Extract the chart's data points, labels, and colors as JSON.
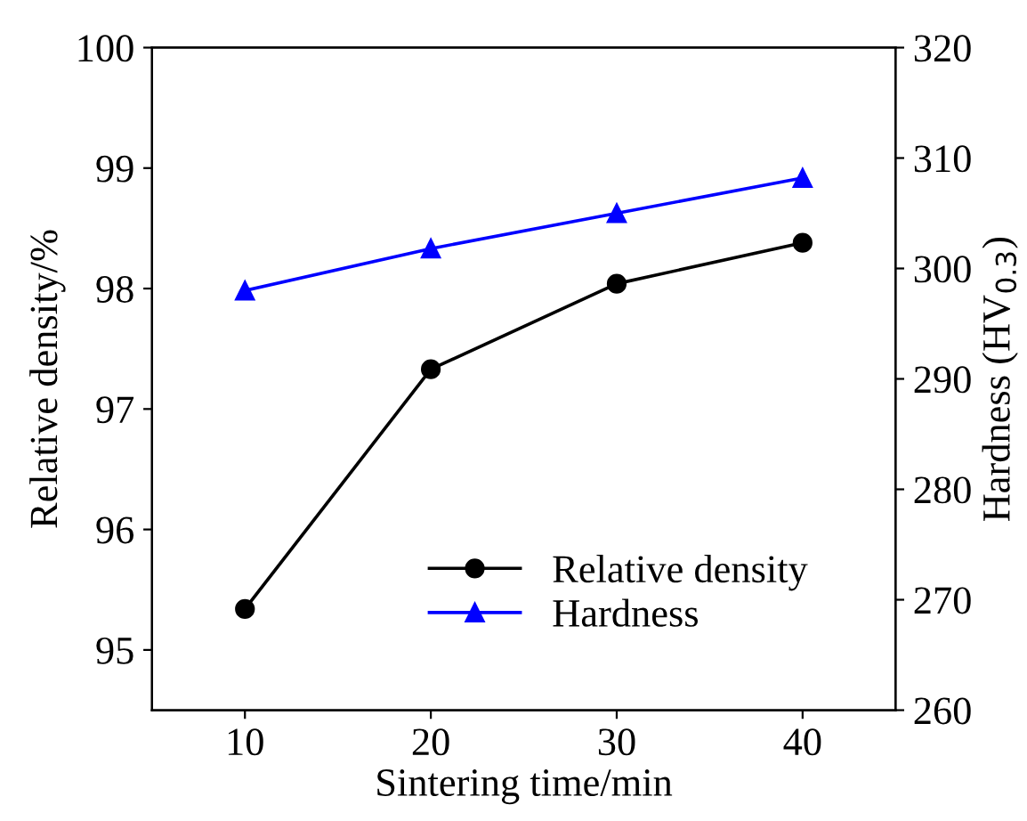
{
  "chart_data": {
    "type": "line",
    "xlabel": "Sintering time/min",
    "ylabel": "Relative density/%",
    "y2label": "Hardness (HV$_{0.3}$)",
    "x": [
      10,
      20,
      30,
      40
    ],
    "series": [
      {
        "name": "Relative density",
        "color": "#000000",
        "values": [
          95.34,
          97.33,
          98.04,
          98.38
        ],
        "marker": "circle"
      },
      {
        "name": "Hardness",
        "color": "#0000ff",
        "values": [
          298.0,
          301.8,
          305.0,
          308.2
        ],
        "marker": "triangle",
        "axis": "y2"
      }
    ],
    "xlim": [
      5,
      45
    ],
    "xticks": [
      10,
      20,
      30,
      40
    ],
    "ylim": [
      94.5,
      100
    ],
    "yticks": [
      95,
      96,
      97,
      98,
      99,
      100
    ],
    "y2lim": [
      260,
      320
    ],
    "y2ticks": [
      260,
      270,
      280,
      290,
      300,
      310,
      320
    ],
    "line_style": "solid",
    "grid": false,
    "legend": "bottom right"
  }
}
